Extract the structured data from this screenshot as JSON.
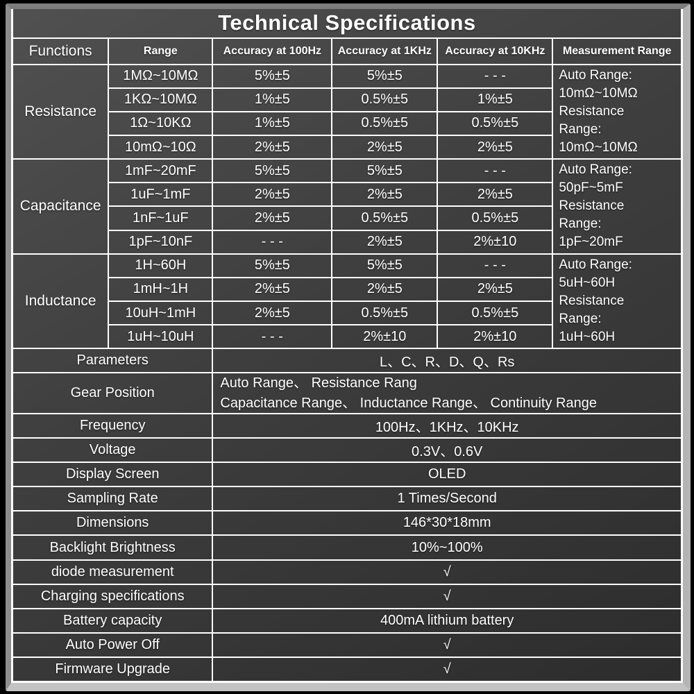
{
  "title": "Technical Specifications",
  "headers": {
    "functions": "Functions",
    "range": "Range",
    "acc100": "Accuracy at 100Hz",
    "acc1k": "Accuracy at 1KHz",
    "acc10k": "Accuracy at 10KHz",
    "measurement": "Measurement Range"
  },
  "sections": [
    {
      "function": "Resistance",
      "rows": [
        {
          "range": "1MΩ~10MΩ",
          "acc100": "5%±5",
          "acc1k": "5%±5",
          "acc10k": "- - -"
        },
        {
          "range": "1KΩ~10MΩ",
          "acc100": "1%±5",
          "acc1k": "0.5%±5",
          "acc10k": "1%±5"
        },
        {
          "range": "1Ω~10KΩ",
          "acc100": "1%±5",
          "acc1k": "0.5%±5",
          "acc10k": "0.5%±5"
        },
        {
          "range": "10mΩ~10Ω",
          "acc100": "2%±5",
          "acc1k": "2%±5",
          "acc10k": "2%±5"
        }
      ],
      "measurement_lines": [
        "Auto Range:",
        "10mΩ~10MΩ",
        "Resistance",
        "Range:",
        "10mΩ~10MΩ"
      ]
    },
    {
      "function": "Capacitance",
      "rows": [
        {
          "range": "1mF~20mF",
          "acc100": "5%±5",
          "acc1k": "5%±5",
          "acc10k": "- - -"
        },
        {
          "range": "1uF~1mF",
          "acc100": "2%±5",
          "acc1k": "2%±5",
          "acc10k": "2%±5"
        },
        {
          "range": "1nF~1uF",
          "acc100": "2%±5",
          "acc1k": "0.5%±5",
          "acc10k": "0.5%±5"
        },
        {
          "range": "1pF~10nF",
          "acc100": "- - -",
          "acc1k": "2%±5",
          "acc10k": "2%±10"
        }
      ],
      "measurement_lines": [
        "Auto Range:",
        "50pF~5mF",
        "Resistance",
        "Range:",
        "1pF~20mF"
      ]
    },
    {
      "function": "Inductance",
      "rows": [
        {
          "range": "1H~60H",
          "acc100": "5%±5",
          "acc1k": "5%±5",
          "acc10k": "- - -"
        },
        {
          "range": "1mH~1H",
          "acc100": "2%±5",
          "acc1k": "2%±5",
          "acc10k": "2%±5"
        },
        {
          "range": "10uH~1mH",
          "acc100": "2%±5",
          "acc1k": "0.5%±5",
          "acc10k": "0.5%±5"
        },
        {
          "range": "1uH~10uH",
          "acc100": "- - -",
          "acc1k": "2%±10",
          "acc10k": "2%±10"
        }
      ],
      "measurement_lines": [
        "Auto Range:",
        "5uH~60H",
        "Resistance",
        "Range:",
        "1uH~60H"
      ]
    }
  ],
  "parameters": {
    "label": "Parameters",
    "value": "L、C、R、D、Q、Rs"
  },
  "gear": {
    "label": "Gear Position",
    "lines": [
      "Auto Range、 Resistance Rang",
      "Capacitance Range、 Inductance Range、 Continuity Range"
    ]
  },
  "specs": [
    {
      "label": "Frequency",
      "value": "100Hz、1KHz、10KHz"
    },
    {
      "label": "Voltage",
      "value": "0.3V、0.6V"
    },
    {
      "label": "Display Screen",
      "value": "OLED"
    },
    {
      "label": "Sampling Rate",
      "value": "1 Times/Second"
    },
    {
      "label": "Dimensions",
      "value": "146*30*18mm"
    },
    {
      "label": "Backlight Brightness",
      "value": "10%~100%"
    },
    {
      "label": "diode measurement",
      "value": "√"
    },
    {
      "label": "Charging specifications",
      "value": "√"
    },
    {
      "label": "Battery capacity",
      "value": "400mA lithium battery"
    },
    {
      "label": "Auto Power Off",
      "value": "√"
    },
    {
      "label": "Firmware Upgrade",
      "value": "√"
    }
  ],
  "colors": {
    "page_background": "#000000",
    "frame_gray": "#b4b4b4",
    "cell_background": "#3e3e3e",
    "grid_line": "#ffffff",
    "text": "#ffffff"
  }
}
